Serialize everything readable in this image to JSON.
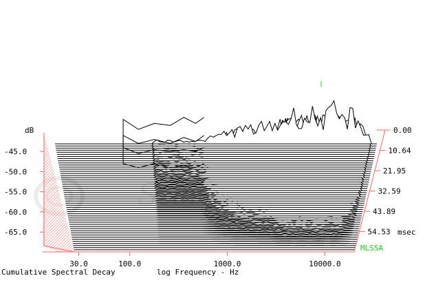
{
  "chart_data": {
    "type": "waterfall",
    "title": "Cumulative Spectral Decay",
    "xlabel": "log Frequency - Hz",
    "ylabel": "dB",
    "time_unit": "msec",
    "watermark": "Stereophile",
    "brand": "MLSSA",
    "y_ticks": [
      "-45.0",
      "-50.0",
      "-55.0",
      "-60.0",
      "-65.0"
    ],
    "x_ticks": [
      "30.0",
      "100.0",
      "1000.0",
      "10000.0"
    ],
    "x_tick_values": [
      30,
      100,
      1000,
      10000
    ],
    "x_range_hz": [
      27,
      20000
    ],
    "time_ticks": [
      "0.00",
      "10.64",
      "21.95",
      "32.59",
      "43.89",
      "54.53"
    ],
    "slice_count": 52,
    "first_slice_profile": [
      [
        200,
        4
      ],
      [
        300,
        4
      ],
      [
        550,
        4
      ],
      [
        900,
        15
      ],
      [
        1300,
        20
      ],
      [
        2000,
        23
      ],
      [
        2600,
        26
      ],
      [
        3200,
        36
      ],
      [
        4000,
        40
      ],
      [
        4800,
        32
      ],
      [
        5500,
        42
      ],
      [
        6500,
        34
      ],
      [
        7500,
        37
      ],
      [
        8500,
        45
      ],
      [
        10000,
        30
      ],
      [
        12000,
        40
      ],
      [
        14000,
        28
      ],
      [
        17000,
        10
      ]
    ],
    "rear_curves_hz_db": [
      [
        [
          95,
          -49
        ],
        [
          130,
          -51.5
        ],
        [
          180,
          -50
        ],
        [
          250,
          -50.5
        ],
        [
          330,
          -48.5
        ],
        [
          420,
          -50
        ],
        [
          500,
          -48.5
        ]
      ],
      [
        [
          95,
          -53
        ],
        [
          130,
          -55
        ],
        [
          180,
          -54
        ],
        [
          250,
          -55
        ],
        [
          330,
          -53.5
        ],
        [
          420,
          -54.5
        ],
        [
          500,
          -53
        ]
      ],
      [
        [
          95,
          -56
        ],
        [
          130,
          -57.5
        ],
        [
          180,
          -56.5
        ],
        [
          250,
          -57
        ],
        [
          330,
          -56.5
        ],
        [
          420,
          -57
        ],
        [
          500,
          -56
        ]
      ],
      [
        [
          95,
          -60
        ],
        [
          130,
          -61
        ],
        [
          180,
          -60
        ],
        [
          250,
          -61
        ],
        [
          330,
          -60.5
        ],
        [
          420,
          -61
        ],
        [
          500,
          -60
        ]
      ]
    ],
    "colors": {
      "axis": "#ff6666",
      "lines": "#000000",
      "brand": "#22cc22",
      "watermark": "#e6e6e6"
    }
  }
}
